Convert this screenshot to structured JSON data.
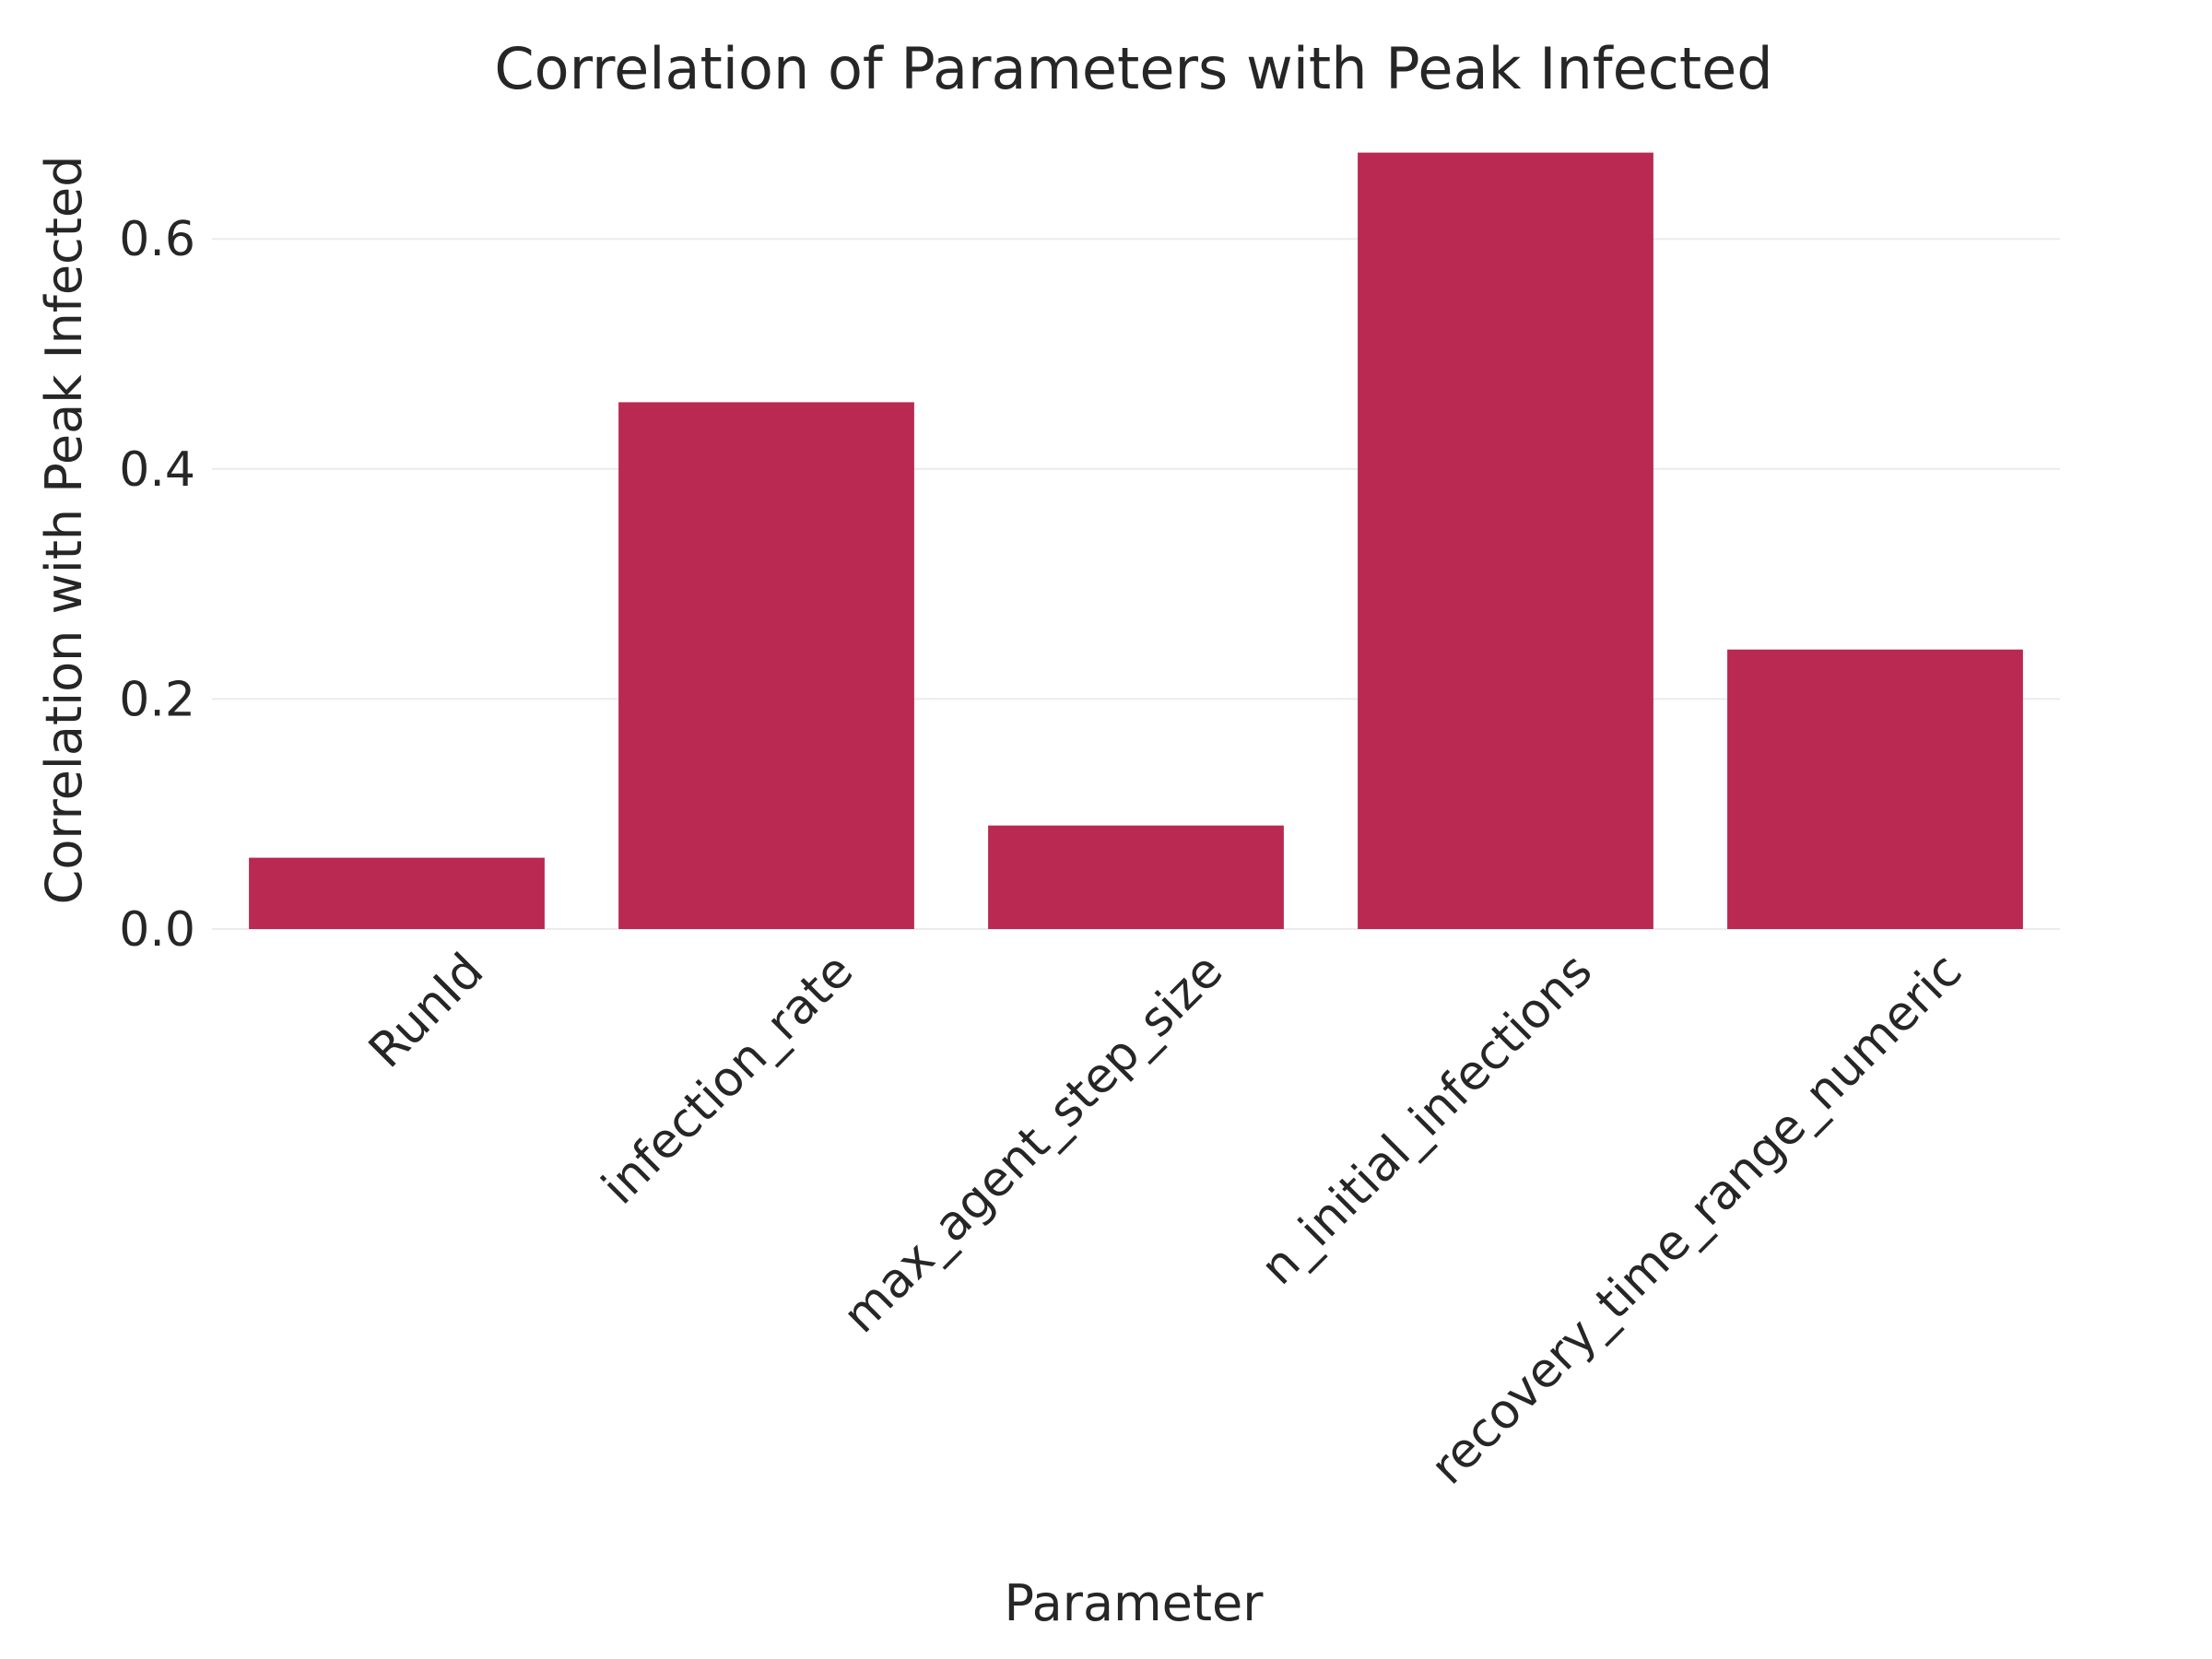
{
  "chart_data": {
    "type": "bar",
    "title": "Correlation of Parameters with Peak Infected",
    "xlabel": "Parameter",
    "ylabel": "Correlation with Peak Infected",
    "categories": [
      "RunId",
      "infection_rate",
      "max_agent_step_size",
      "n_initial_infections",
      "recovery_time_range_numeric"
    ],
    "values": [
      0.062,
      0.458,
      0.09,
      0.675,
      0.243
    ],
    "ylim": [
      0,
      0.7
    ],
    "yticks": [
      0.0,
      0.2,
      0.4,
      0.6
    ],
    "ytick_labels": [
      "0.0",
      "0.2",
      "0.4",
      "0.6"
    ],
    "bar_color": "#b92951",
    "grid": true,
    "legend": "none"
  }
}
